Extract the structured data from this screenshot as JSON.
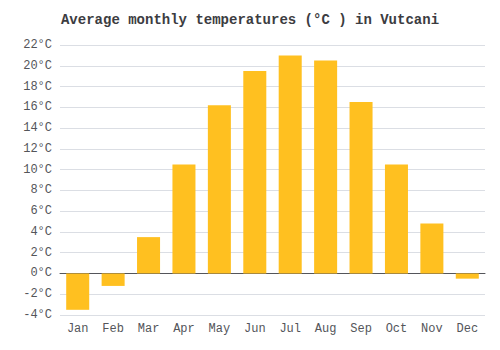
{
  "chart_data": {
    "type": "bar",
    "title": "Average monthly temperatures (°C ) in Vutcani",
    "categories": [
      "Jan",
      "Feb",
      "Mar",
      "Apr",
      "May",
      "Jun",
      "Jul",
      "Aug",
      "Sep",
      "Oct",
      "Nov",
      "Dec"
    ],
    "values": [
      -3.5,
      -1.2,
      3.5,
      10.5,
      16.2,
      19.5,
      21.0,
      20.5,
      16.5,
      10.5,
      4.8,
      -0.5
    ],
    "color": "#FFC020",
    "ylim": [
      -4,
      22
    ],
    "yticks": [
      {
        "value": -4,
        "label": "-4°C"
      },
      {
        "value": -2,
        "label": "-2°C"
      },
      {
        "value": 0,
        "label": "0°C"
      },
      {
        "value": 2,
        "label": "2°C"
      },
      {
        "value": 4,
        "label": "4°C"
      },
      {
        "value": 6,
        "label": "6°C"
      },
      {
        "value": 8,
        "label": "8°C"
      },
      {
        "value": 10,
        "label": "10°C"
      },
      {
        "value": 12,
        "label": "12°C"
      },
      {
        "value": 14,
        "label": "14°C"
      },
      {
        "value": 16,
        "label": "16°C"
      },
      {
        "value": 18,
        "label": "18°C"
      },
      {
        "value": 20,
        "label": "20°C"
      },
      {
        "value": 22,
        "label": "22°C"
      }
    ],
    "grid": true
  }
}
